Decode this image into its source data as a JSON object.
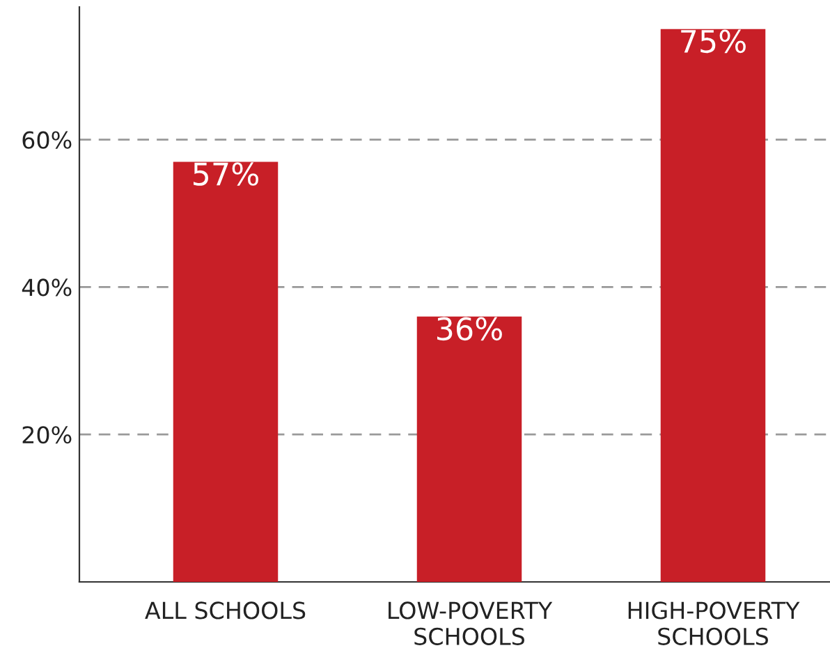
{
  "chart_data": {
    "type": "bar",
    "categories": [
      "ALL SCHOOLS",
      "LOW-POVERTY\nSCHOOLS",
      "HIGH-POVERTY\nSCHOOLS"
    ],
    "values": [
      57,
      36,
      75
    ],
    "value_labels": [
      "57%",
      "36%",
      "75%"
    ],
    "color": "#c81f27",
    "ylim": [
      0,
      78
    ],
    "yticks": [
      {
        "value": 20,
        "label": "20%"
      },
      {
        "value": 40,
        "label": "40%"
      },
      {
        "value": 60,
        "label": "60%"
      }
    ],
    "grid": "y"
  }
}
